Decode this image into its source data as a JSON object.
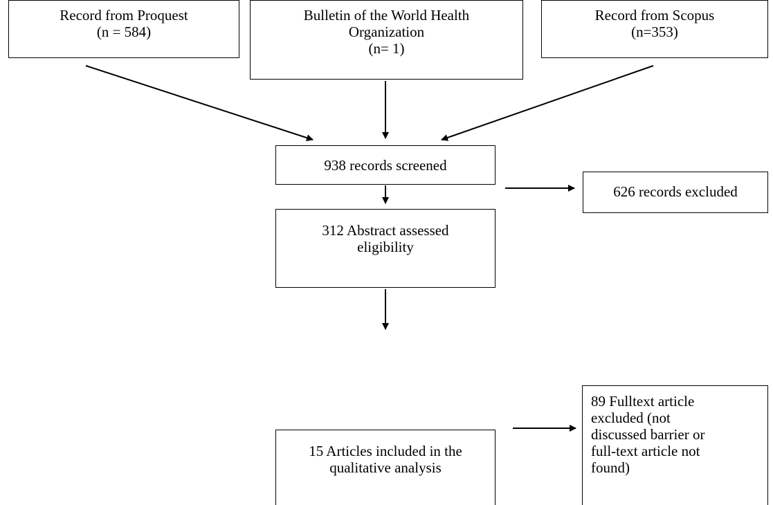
{
  "sources": {
    "proquest": {
      "line1": "Record from Proquest",
      "line2": "(n = 584)"
    },
    "who": {
      "line1": "Bulletin of the World Health",
      "line2": "Organization",
      "line3": "(n= 1)"
    },
    "scopus": {
      "line1": "Record from Scopus",
      "line2": "(n=353)"
    }
  },
  "screened": {
    "text": "938 records screened"
  },
  "excluded": {
    "text": "626 records excluded"
  },
  "abstract": {
    "line1": "312 Abstract assessed",
    "line2": "eligibility"
  },
  "fulltext_excluded": {
    "line1": "89 Fulltext article",
    "line2": "excluded (not",
    "line3": "discussed barrier or",
    "line4": "full-text article not",
    "line5": "found)"
  },
  "included": {
    "line1": "15 Articles included in the",
    "line2": "qualitative analysis"
  }
}
